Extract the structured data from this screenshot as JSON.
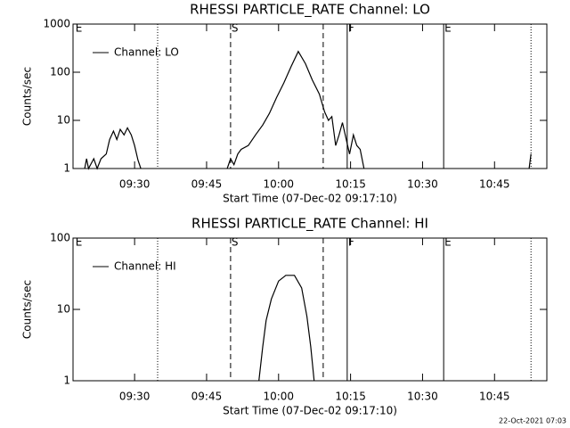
{
  "chart_data": [
    {
      "type": "line",
      "title": "RHESSI PARTICLE_RATE Channel: LO",
      "xlabel": "Start Time (07-Dec-02 09:17:10)",
      "ylabel": "Counts/sec",
      "log_y": true,
      "xlim": [
        17.17,
        115.9
      ],
      "ylim": [
        1,
        1000
      ],
      "xticks": [
        {
          "value": 30,
          "label": "09:30"
        },
        {
          "value": 45,
          "label": "09:45"
        },
        {
          "value": 60,
          "label": "10:00"
        },
        {
          "value": 75,
          "label": "10:15"
        },
        {
          "value": 90,
          "label": "10:30"
        },
        {
          "value": 105,
          "label": "10:45"
        }
      ],
      "yticks": [
        1,
        10,
        100,
        1000
      ],
      "annotations": [
        {
          "x": 17.5,
          "label": "E"
        },
        {
          "x": 50,
          "label": "S"
        },
        {
          "x": 74.3,
          "label": "F"
        },
        {
          "x": 94.4,
          "label": "E"
        }
      ],
      "event_lines": [
        {
          "x": 34.8,
          "style": "dotted"
        },
        {
          "x": 50,
          "style": "dashed"
        },
        {
          "x": 69.3,
          "style": "dashed"
        },
        {
          "x": 74.3,
          "style": "solid"
        },
        {
          "x": 94.4,
          "style": "solid"
        },
        {
          "x": 112.6,
          "style": "dotted"
        }
      ],
      "series": [
        {
          "name": "Channel: LO",
          "color": "#000000",
          "x": [
            19.6,
            20,
            20.4,
            21.5,
            22.2,
            23,
            24.1,
            24.8,
            25.6,
            26.3,
            27,
            27.8,
            28.5,
            29.3,
            30,
            30.7,
            31.3,
            40,
            49.3,
            50,
            50.7,
            51.5,
            52.2,
            53.7,
            55.2,
            56.7,
            58.1,
            59.6,
            61.1,
            62.6,
            64.1,
            65.6,
            67,
            68.5,
            69.6,
            70.4,
            71.1,
            71.9,
            72.6,
            73.3,
            74.1,
            74.8,
            75.6,
            76.3,
            77,
            77.8,
            90,
            112.2,
            112.6
          ],
          "values": [
            1,
            1.6,
            1,
            1.6,
            1,
            1.6,
            2,
            4,
            6,
            4,
            6.5,
            5,
            7,
            5,
            3,
            1.5,
            1,
            null,
            1,
            1.6,
            1.2,
            2,
            2.5,
            3,
            5,
            8,
            14,
            30,
            60,
            130,
            270,
            150,
            70,
            35,
            15,
            10,
            12,
            3,
            5,
            9,
            4,
            2,
            5,
            3,
            2.5,
            1,
            null,
            1,
            2
          ]
        }
      ]
    },
    {
      "type": "line",
      "title": "RHESSI PARTICLE_RATE Channel: HI",
      "xlabel": "Start Time (07-Dec-02 09:17:10)",
      "ylabel": "Counts/sec",
      "log_y": true,
      "xlim": [
        17.17,
        115.9
      ],
      "ylim": [
        1,
        100
      ],
      "xticks": [
        {
          "value": 30,
          "label": "09:30"
        },
        {
          "value": 45,
          "label": "09:45"
        },
        {
          "value": 60,
          "label": "10:00"
        },
        {
          "value": 75,
          "label": "10:15"
        },
        {
          "value": 90,
          "label": "10:30"
        },
        {
          "value": 105,
          "label": "10:45"
        }
      ],
      "yticks": [
        1,
        10,
        100
      ],
      "annotations": [
        {
          "x": 17.5,
          "label": "E"
        },
        {
          "x": 50,
          "label": "S"
        },
        {
          "x": 74.3,
          "label": "F"
        },
        {
          "x": 94.4,
          "label": "E"
        }
      ],
      "event_lines": [
        {
          "x": 34.8,
          "style": "dotted"
        },
        {
          "x": 50,
          "style": "dashed"
        },
        {
          "x": 69.3,
          "style": "dashed"
        },
        {
          "x": 74.3,
          "style": "solid"
        },
        {
          "x": 94.4,
          "style": "solid"
        },
        {
          "x": 112.6,
          "style": "dotted"
        }
      ],
      "series": [
        {
          "name": "Channel: HI",
          "color": "#000000",
          "x": [
            55.9,
            56.7,
            57.4,
            58.5,
            60,
            61.5,
            63.3,
            64.8,
            65.9,
            66.7,
            67.4
          ],
          "values": [
            1,
            3,
            7,
            14,
            25,
            30,
            30,
            20,
            8,
            3,
            1
          ]
        }
      ]
    }
  ],
  "footer": "22-Oct-2021 07:03"
}
